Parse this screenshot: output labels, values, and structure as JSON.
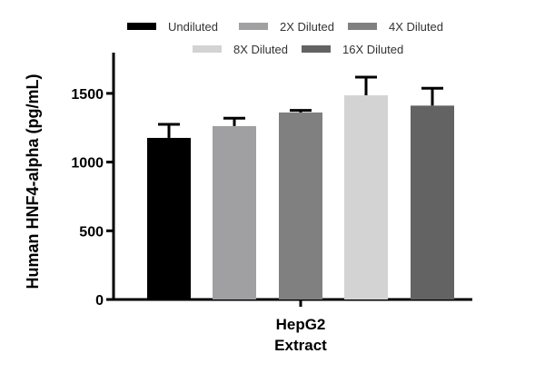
{
  "chart_data": {
    "type": "bar",
    "title": "",
    "xlabel": "",
    "ylabel": "Human HNF4-alpha (pg/mL)",
    "category_lines": [
      "HepG2",
      "Extract"
    ],
    "ylim": [
      0,
      1800
    ],
    "yticks": [
      0,
      500,
      1000,
      1500
    ],
    "legend_position": "top",
    "series": [
      {
        "name": "Undiluted",
        "value": 1176,
        "error": 99,
        "color": "#000000"
      },
      {
        "name": "2X Diluted",
        "value": 1262,
        "error": 57,
        "color": "#a0a0a3"
      },
      {
        "name": "4X Diluted",
        "value": 1361,
        "error": 15,
        "color": "#808080"
      },
      {
        "name": "8X Diluted",
        "value": 1486,
        "error": 132,
        "color": "#d3d3d3"
      },
      {
        "name": "16X Diluted",
        "value": 1411,
        "error": 126,
        "color": "#636363"
      }
    ]
  }
}
